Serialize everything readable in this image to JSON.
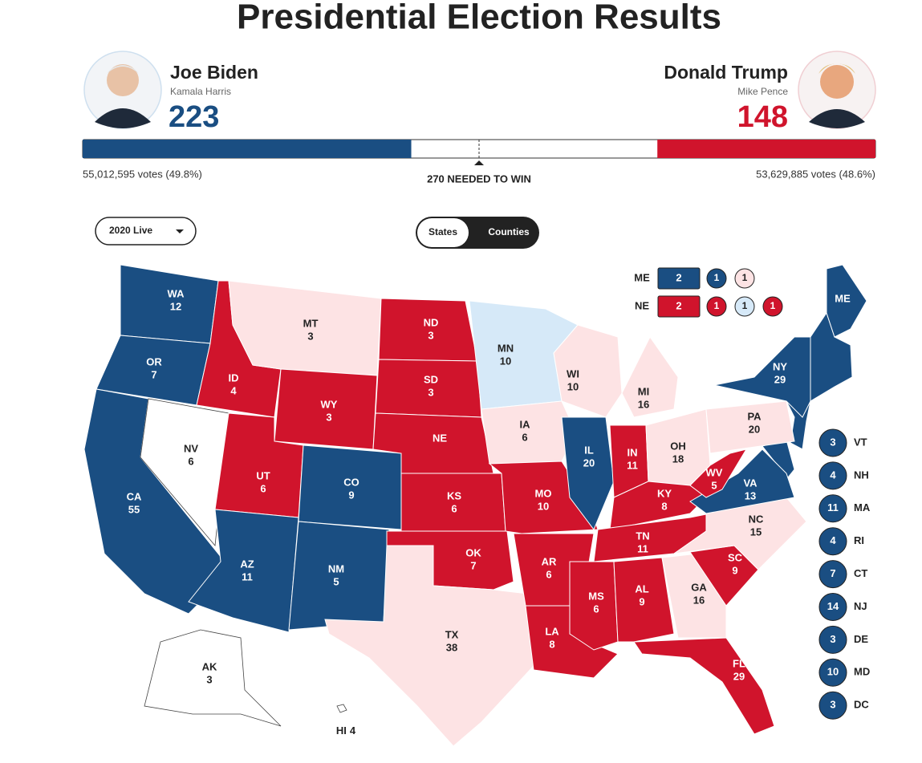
{
  "title": "Presidential Election Results",
  "candidates": [
    {
      "name": "Joe Biden",
      "running_mate": "Kamala Harris",
      "electoral_votes": 223,
      "votes": "55,012,595 votes (49.8%)",
      "status": "dem"
    },
    {
      "name": "Donald Trump",
      "running_mate": "Mike Pence",
      "electoral_votes": 148,
      "votes": "53,629,885 votes (48.6%)",
      "status": "rep"
    }
  ],
  "needed_label": "270 NEEDED TO WIN",
  "dropdown": "2020 Live",
  "toggle": [
    "States",
    "Counties"
  ],
  "colors": {
    "dem": "#1a4e82",
    "rep": "#d0142c",
    "lean_dem": "#d6e9f8",
    "lean_rep": "#fde3e4",
    "none": "#ffffff"
  },
  "states": [
    {
      "abbr": "WA",
      "ev": 12,
      "status": "dem"
    },
    {
      "abbr": "OR",
      "ev": 7,
      "status": "dem"
    },
    {
      "abbr": "CA",
      "ev": 55,
      "status": "dem"
    },
    {
      "abbr": "NV",
      "ev": 6,
      "status": "none"
    },
    {
      "abbr": "ID",
      "ev": 4,
      "status": "rep"
    },
    {
      "abbr": "MT",
      "ev": 3,
      "status": "lean_rep"
    },
    {
      "abbr": "WY",
      "ev": 3,
      "status": "rep"
    },
    {
      "abbr": "UT",
      "ev": 6,
      "status": "rep"
    },
    {
      "abbr": "AZ",
      "ev": 11,
      "status": "dem"
    },
    {
      "abbr": "CO",
      "ev": 9,
      "status": "dem"
    },
    {
      "abbr": "NM",
      "ev": 5,
      "status": "dem"
    },
    {
      "abbr": "ND",
      "ev": 3,
      "status": "rep"
    },
    {
      "abbr": "SD",
      "ev": 3,
      "status": "rep"
    },
    {
      "abbr": "NE",
      "ev": null,
      "status": "rep"
    },
    {
      "abbr": "KS",
      "ev": 6,
      "status": "rep"
    },
    {
      "abbr": "OK",
      "ev": 7,
      "status": "rep"
    },
    {
      "abbr": "TX",
      "ev": 38,
      "status": "lean_rep"
    },
    {
      "abbr": "MN",
      "ev": 10,
      "status": "lean_dem"
    },
    {
      "abbr": "IA",
      "ev": 6,
      "status": "lean_rep"
    },
    {
      "abbr": "MO",
      "ev": 10,
      "status": "rep"
    },
    {
      "abbr": "AR",
      "ev": 6,
      "status": "rep"
    },
    {
      "abbr": "LA",
      "ev": 8,
      "status": "rep"
    },
    {
      "abbr": "WI",
      "ev": 10,
      "status": "lean_rep"
    },
    {
      "abbr": "IL",
      "ev": 20,
      "status": "dem"
    },
    {
      "abbr": "MI",
      "ev": 16,
      "status": "lean_rep"
    },
    {
      "abbr": "IN",
      "ev": 11,
      "status": "rep"
    },
    {
      "abbr": "OH",
      "ev": 18,
      "status": "lean_rep"
    },
    {
      "abbr": "KY",
      "ev": 8,
      "status": "rep"
    },
    {
      "abbr": "TN",
      "ev": 11,
      "status": "rep"
    },
    {
      "abbr": "MS",
      "ev": 6,
      "status": "rep"
    },
    {
      "abbr": "AL",
      "ev": 9,
      "status": "rep"
    },
    {
      "abbr": "GA",
      "ev": 16,
      "status": "lean_rep"
    },
    {
      "abbr": "FL",
      "ev": 29,
      "status": "rep"
    },
    {
      "abbr": "SC",
      "ev": 9,
      "status": "rep"
    },
    {
      "abbr": "NC",
      "ev": 15,
      "status": "lean_rep"
    },
    {
      "abbr": "VA",
      "ev": 13,
      "status": "dem"
    },
    {
      "abbr": "WV",
      "ev": 5,
      "status": "rep"
    },
    {
      "abbr": "PA",
      "ev": 20,
      "status": "lean_rep"
    },
    {
      "abbr": "NY",
      "ev": 29,
      "status": "dem"
    },
    {
      "abbr": "ME",
      "ev": null,
      "status": "dem"
    },
    {
      "abbr": "AK",
      "ev": 3,
      "status": "none"
    },
    {
      "abbr": "HI",
      "ev": 4,
      "status": "none"
    }
  ],
  "splits": [
    {
      "abbr": "ME",
      "values": [
        2,
        1,
        1
      ],
      "statuses": [
        "dem",
        "dem",
        "lean_rep"
      ]
    },
    {
      "abbr": "NE",
      "values": [
        2,
        1,
        1,
        1
      ],
      "statuses": [
        "rep",
        "rep",
        "lean_dem",
        "rep"
      ]
    }
  ],
  "small_states": [
    {
      "abbr": "VT",
      "ev": 3,
      "status": "dem"
    },
    {
      "abbr": "NH",
      "ev": 4,
      "status": "dem"
    },
    {
      "abbr": "MA",
      "ev": 11,
      "status": "dem"
    },
    {
      "abbr": "RI",
      "ev": 4,
      "status": "dem"
    },
    {
      "abbr": "CT",
      "ev": 7,
      "status": "dem"
    },
    {
      "abbr": "NJ",
      "ev": 14,
      "status": "dem"
    },
    {
      "abbr": "DE",
      "ev": 3,
      "status": "dem"
    },
    {
      "abbr": "MD",
      "ev": 10,
      "status": "dem"
    },
    {
      "abbr": "DC",
      "ev": 3,
      "status": "dem"
    }
  ]
}
